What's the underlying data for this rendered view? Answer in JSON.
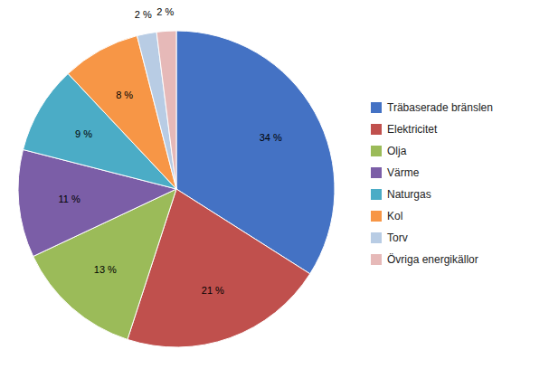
{
  "chart_data": {
    "type": "pie",
    "categories": [
      "Träbaserade bränslen",
      "Elektricitet",
      "Olja",
      "Värme",
      "Naturgas",
      "Kol",
      "Torv",
      "Övriga energikällor"
    ],
    "values": [
      34,
      21,
      13,
      11,
      9,
      8,
      2,
      2
    ],
    "value_labels": [
      "34 %",
      "21 %",
      "13 %",
      "11 %",
      "9 %",
      "8 %",
      "2 %",
      "2 %"
    ],
    "colors": [
      "#4472C4",
      "#C0504D",
      "#9BBB59",
      "#7B5EA7",
      "#4BACC6",
      "#F79646",
      "#B8CCE4",
      "#E6B9B8"
    ],
    "data_labels": true,
    "legend": "right"
  }
}
